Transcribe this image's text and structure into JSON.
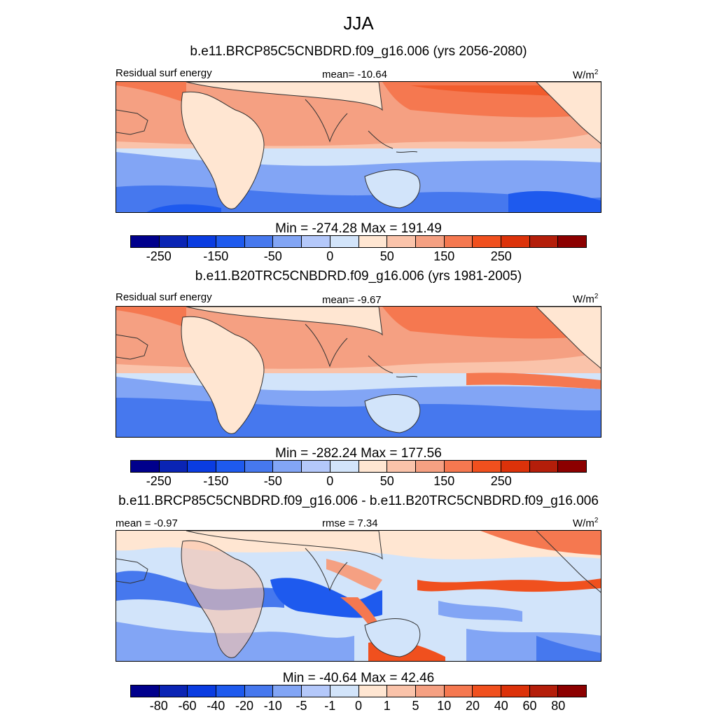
{
  "chart_data": {
    "type": "heatmap",
    "title": "JJA",
    "variable_label": "Residual surf energy",
    "units": "W/m",
    "units_exp": "2",
    "panels": [
      {
        "title": "b.e11.BRCP85C5CNBDRD.f09_g16.006 (yrs 2056-2080)",
        "left_label": "Residual surf energy",
        "center_label": "mean= -10.64",
        "mean": -10.64,
        "minmax_label": "Min = -274.28 Max = 191.49",
        "min": -274.28,
        "max": 191.49,
        "colorbar_ticks": [
          "-250",
          "-150",
          "-50",
          "0",
          "50",
          "150",
          "250"
        ],
        "colorbar_levels": [
          -300,
          -250,
          -200,
          -150,
          -100,
          -50,
          0,
          50,
          100,
          150,
          200,
          250,
          300
        ]
      },
      {
        "title": "b.e11.B20TRC5CNBDRD.f09_g16.006 (yrs 1981-2005)",
        "left_label": "Residual surf energy",
        "center_label": "mean=  -9.67",
        "mean": -9.67,
        "minmax_label": "Min = -282.24 Max = 177.56",
        "min": -282.24,
        "max": 177.56,
        "colorbar_ticks": [
          "-250",
          "-150",
          "-50",
          "0",
          "50",
          "150",
          "250"
        ],
        "colorbar_levels": [
          -300,
          -250,
          -200,
          -150,
          -100,
          -50,
          0,
          50,
          100,
          150,
          200,
          250,
          300
        ]
      },
      {
        "title": "b.e11.BRCP85C5CNBDRD.f09_g16.006 - b.e11.B20TRC5CNBDRD.f09_g16.006",
        "left_label": "mean =  -0.97",
        "center_label": "rmse =   7.34",
        "mean": -0.97,
        "rmse": 7.34,
        "minmax_label": "Min = -40.64 Max =  42.46",
        "min": -40.64,
        "max": 42.46,
        "colorbar_ticks": [
          "-80",
          "-60",
          "-40",
          "-20",
          "-10",
          "-5",
          "-1",
          "0",
          "1",
          "5",
          "10",
          "20",
          "40",
          "60",
          "80"
        ],
        "colorbar_levels": [
          -100,
          -80,
          -60,
          -40,
          -20,
          -10,
          -5,
          -1,
          0,
          1,
          5,
          10,
          20,
          40,
          60,
          80,
          100
        ]
      }
    ],
    "colormap": [
      "#00008c",
      "#0a24b4",
      "#0a3ce1",
      "#1e5aee",
      "#4678ee",
      "#82a5f5",
      "#b4c8fa",
      "#d2e4fa",
      "#ffe6d2",
      "#fac3aa",
      "#f5a082",
      "#f57850",
      "#f0501e",
      "#dc320a",
      "#b41e0a",
      "#8c0000"
    ]
  }
}
